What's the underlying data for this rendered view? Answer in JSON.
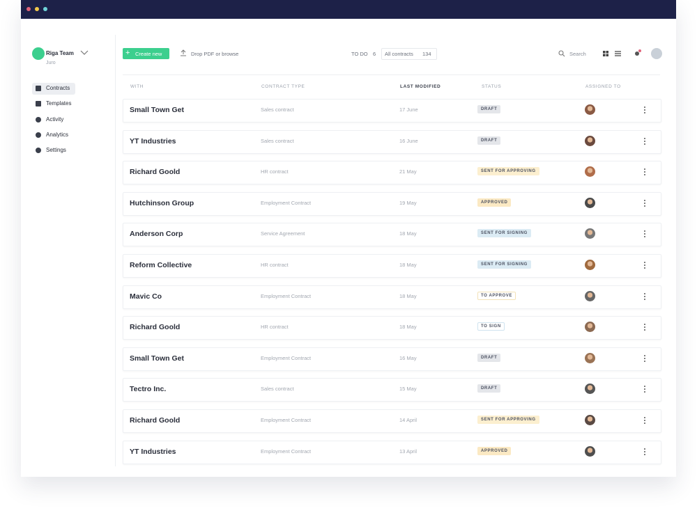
{
  "sidebar": {
    "team": "Riga Team",
    "workspace": "Juro",
    "nav": [
      "Contracts",
      "Templates",
      "Activity",
      "Analytics",
      "Settings"
    ]
  },
  "toolbar": {
    "create": "Create new",
    "upload": "Drop PDF or browse",
    "todo_label": "TO DO",
    "todo_count": "6",
    "all_label": "All contracts",
    "all_count": "134",
    "search": "Search"
  },
  "table": {
    "columns": [
      "WITH",
      "CONTRACT TYPE",
      "LAST MODIFIED",
      "STATUS",
      "ASSIGNED TO"
    ],
    "rows": [
      {
        "with": "Small Town Get",
        "type": "Sales contract",
        "modified": "17 June",
        "status": "DRAFT",
        "status_bg": "#e4e6ea",
        "status_border": "#e4e6ea"
      },
      {
        "with": "YT Industries",
        "type": "Sales contract",
        "modified": "16 June",
        "status": "DRAFT",
        "status_bg": "#e4e6ea",
        "status_border": "#e4e6ea"
      },
      {
        "with": "Richard Goold",
        "type": "HR contract",
        "modified": "21 May",
        "status": "SENT FOR APPROVING",
        "status_bg": "#fcefcf",
        "status_border": "#fcefcf"
      },
      {
        "with": "Hutchinson Group",
        "type": "Employment Contract",
        "modified": "19 May",
        "status": "APPROVED",
        "status_bg": "#fbe9c3",
        "status_border": "#fbe9c3"
      },
      {
        "with": "Anderson Corp",
        "type": "Service Agreement",
        "modified": "18 May",
        "status": "SENT FOR SIGNING",
        "status_bg": "#dbebf4",
        "status_border": "#dbebf4"
      },
      {
        "with": "Reform Collective",
        "type": "HR contract",
        "modified": "18 May",
        "status": "SENT FOR SIGNING",
        "status_bg": "#dbebf4",
        "status_border": "#dbebf4"
      },
      {
        "with": "Mavic Co",
        "type": "Employment Contract",
        "modified": "18 May",
        "status": "TO APPROVE",
        "status_bg": "#ffffff",
        "status_border": "#f3e2b8"
      },
      {
        "with": "Richard Goold",
        "type": "HR contract",
        "modified": "18 May",
        "status": "TO SIGN",
        "status_bg": "#ffffff",
        "status_border": "#cfe3ef"
      },
      {
        "with": "Small Town Get",
        "type": "Employment Contract",
        "modified": "16 May",
        "status": "DRAFT",
        "status_bg": "#e4e6ea",
        "status_border": "#e4e6ea"
      },
      {
        "with": "Tectro Inc.",
        "type": "Sales contract",
        "modified": "15 May",
        "status": "DRAFT",
        "status_bg": "#e4e6ea",
        "status_border": "#e4e6ea"
      },
      {
        "with": "Richard Goold",
        "type": "Employment Contract",
        "modified": "14 April",
        "status": "SENT FOR APPROVING",
        "status_bg": "#fcefcf",
        "status_border": "#fcefcf"
      },
      {
        "with": "YT Industries",
        "type": "Employment Contract",
        "modified": "13 April",
        "status": "APPROVED",
        "status_bg": "#fbe9c3",
        "status_border": "#fbe9c3"
      }
    ]
  }
}
